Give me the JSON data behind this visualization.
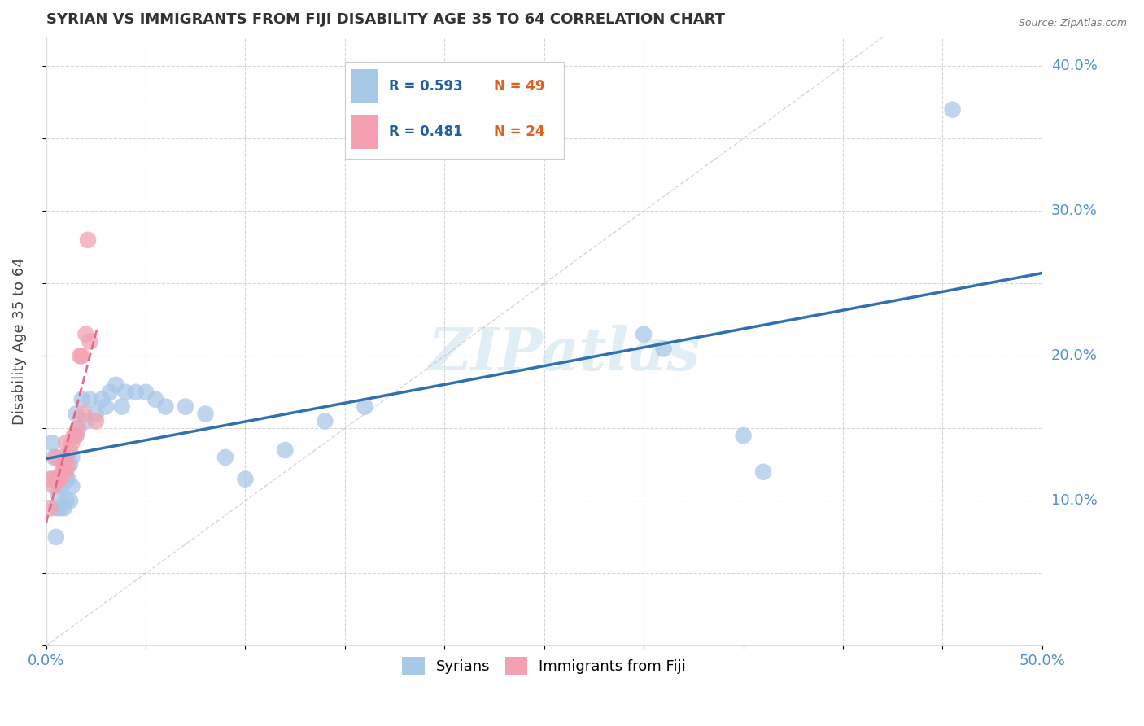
{
  "title": "SYRIAN VS IMMIGRANTS FROM FIJI DISABILITY AGE 35 TO 64 CORRELATION CHART",
  "source": "Source: ZipAtlas.com",
  "ylabel": "Disability Age 35 to 64",
  "xlim": [
    0.0,
    0.5
  ],
  "ylim": [
    0.0,
    0.42
  ],
  "watermark_text": "ZIPatlas",
  "legend_r1": "R = 0.593",
  "legend_n1": "N = 49",
  "legend_r2": "R = 0.481",
  "legend_n2": "N = 24",
  "legend_label1": "Syrians",
  "legend_label2": "Immigrants from Fiji",
  "color_blue": "#a8c8e8",
  "color_pink": "#f4a0b0",
  "line_blue": "#3070b0",
  "line_pink": "#e06080",
  "tick_color": "#5090d0",
  "syrians_x": [
    0.002,
    0.003,
    0.004,
    0.005,
    0.005,
    0.006,
    0.007,
    0.007,
    0.008,
    0.008,
    0.009,
    0.009,
    0.01,
    0.01,
    0.01,
    0.011,
    0.012,
    0.012,
    0.013,
    0.013,
    0.015,
    0.015,
    0.016,
    0.018,
    0.02,
    0.022,
    0.025,
    0.028,
    0.03,
    0.032,
    0.035,
    0.038,
    0.04,
    0.045,
    0.05,
    0.055,
    0.06,
    0.07,
    0.08,
    0.09,
    0.1,
    0.12,
    0.14,
    0.16,
    0.3,
    0.31,
    0.35,
    0.36,
    0.455
  ],
  "syrians_y": [
    0.115,
    0.14,
    0.13,
    0.075,
    0.095,
    0.105,
    0.095,
    0.115,
    0.11,
    0.13,
    0.095,
    0.12,
    0.1,
    0.115,
    0.13,
    0.115,
    0.1,
    0.125,
    0.11,
    0.13,
    0.145,
    0.16,
    0.15,
    0.17,
    0.155,
    0.17,
    0.16,
    0.17,
    0.165,
    0.175,
    0.18,
    0.165,
    0.175,
    0.175,
    0.175,
    0.17,
    0.165,
    0.165,
    0.16,
    0.13,
    0.115,
    0.135,
    0.155,
    0.165,
    0.215,
    0.205,
    0.145,
    0.12,
    0.37
  ],
  "fiji_x": [
    0.002,
    0.003,
    0.004,
    0.005,
    0.005,
    0.006,
    0.007,
    0.008,
    0.009,
    0.01,
    0.01,
    0.011,
    0.012,
    0.013,
    0.014,
    0.015,
    0.016,
    0.017,
    0.018,
    0.019,
    0.02,
    0.021,
    0.022,
    0.025
  ],
  "fiji_y": [
    0.095,
    0.115,
    0.11,
    0.13,
    0.115,
    0.115,
    0.115,
    0.12,
    0.125,
    0.12,
    0.14,
    0.125,
    0.135,
    0.14,
    0.145,
    0.145,
    0.15,
    0.2,
    0.2,
    0.16,
    0.215,
    0.28,
    0.21,
    0.155
  ]
}
